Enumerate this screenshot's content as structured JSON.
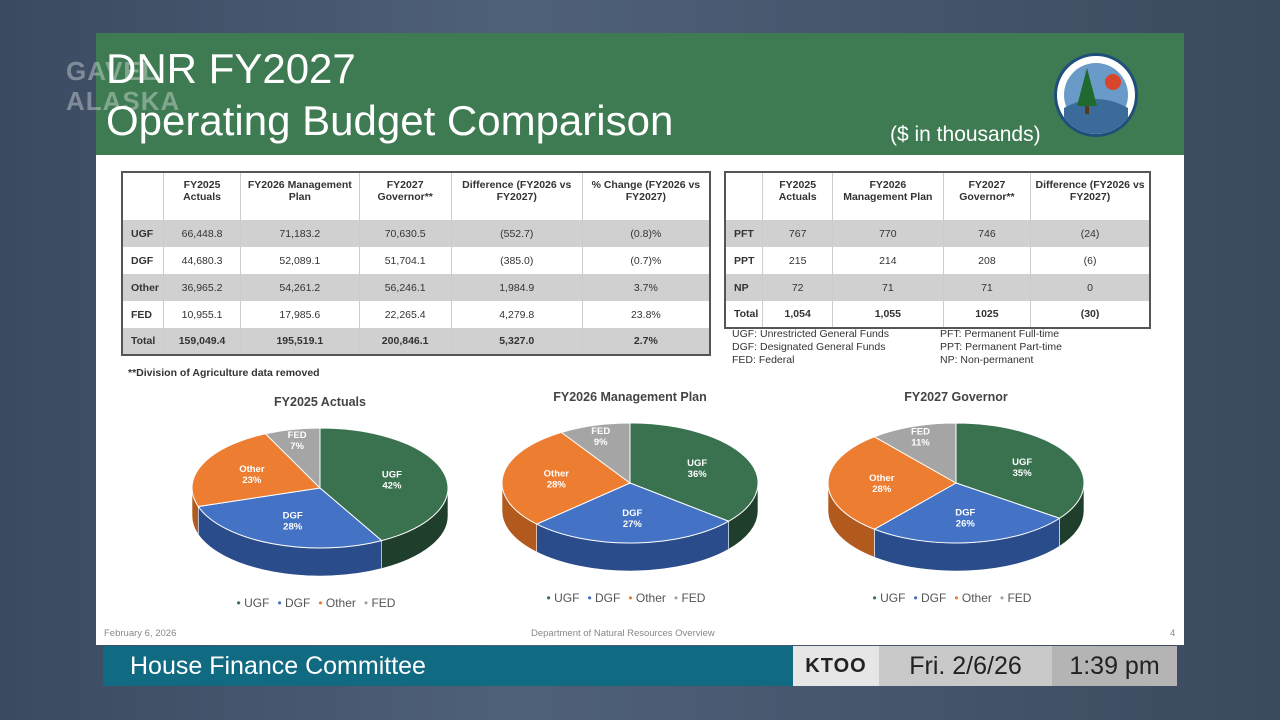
{
  "watermark": {
    "line1": "GAVEL",
    "line2": "ALASKA"
  },
  "slide": {
    "title_line1": "DNR FY2027",
    "title_line2": "Operating Budget Comparison",
    "units": "($ in thousands)",
    "logo_text": "Alaska Department of Natural Resources",
    "budget_table": {
      "headers": [
        "",
        "FY2025 Actuals",
        "FY2026 Management Plan",
        "FY2027 Governor**",
        "Difference (FY2026 vs FY2027)",
        "% Change (FY2026 vs FY2027)"
      ],
      "rows": [
        [
          "UGF",
          "66,448.8",
          "71,183.2",
          "70,630.5",
          "(552.7)",
          "(0.8)%"
        ],
        [
          "DGF",
          "44,680.3",
          "52,089.1",
          "51,704.1",
          "(385.0)",
          "(0.7)%"
        ],
        [
          "Other",
          "36,965.2",
          "54,261.2",
          "56,246.1",
          "1,984.9",
          "3.7%"
        ],
        [
          "FED",
          "10,955.1",
          "17,985.6",
          "22,265.4",
          "4,279.8",
          "23.8%"
        ],
        [
          "Total",
          "159,049.4",
          "195,519.1",
          "200,846.1",
          "5,327.0",
          "2.7%"
        ]
      ]
    },
    "position_table": {
      "headers": [
        "",
        "FY2025 Actuals",
        "FY2026 Management Plan",
        "FY2027 Governor**",
        "Difference (FY2026 vs FY2027)"
      ],
      "rows": [
        [
          "PFT",
          "767",
          "770",
          "746",
          "(24)"
        ],
        [
          "PPT",
          "215",
          "214",
          "208",
          "(6)"
        ],
        [
          "NP",
          "72",
          "71",
          "71",
          "0"
        ],
        [
          "Total",
          "1,054",
          "1,055",
          "1025",
          "(30)"
        ]
      ]
    },
    "abbrev_left": [
      "UGF: Unrestricted General Funds",
      "DGF: Designated General Funds",
      "FED: Federal"
    ],
    "abbrev_right": [
      "PFT: Permanent Full-time",
      "PPT: Permanent Part-time",
      "NP: Non-permanent"
    ],
    "note": "**Division of Agriculture data removed",
    "footer_date": "February 6, 2026",
    "footer_center": "Department of Natural Resources Overview",
    "page_number": "4"
  },
  "chart_data": [
    {
      "type": "pie",
      "title": "FY2025 Actuals",
      "labels": [
        "UGF",
        "DGF",
        "Other",
        "FED"
      ],
      "values": [
        42,
        28,
        23,
        7
      ],
      "legend": [
        "UGF",
        "DGF",
        "Other",
        "FED"
      ]
    },
    {
      "type": "pie",
      "title": "FY2026 Management Plan",
      "labels": [
        "UGF",
        "DGF",
        "Other",
        "FED"
      ],
      "values": [
        36,
        27,
        28,
        9
      ],
      "legend": [
        "UGF",
        "DGF",
        "Other",
        "FED"
      ]
    },
    {
      "type": "pie",
      "title": "FY2027 Governor",
      "labels": [
        "UGF",
        "DGF",
        "Other",
        "FED"
      ],
      "values": [
        35,
        26,
        28,
        11
      ],
      "legend": [
        "UGF",
        "DGF",
        "Other",
        "FED"
      ]
    }
  ],
  "colors": {
    "UGF": "#3a7250",
    "DGF": "#4472c4",
    "Other": "#ed7d31",
    "FED": "#a5a5a5"
  },
  "lower_third": {
    "program": "House Finance Committee",
    "station": "KTOO",
    "date": "Fri. 2/6/26",
    "time": "1:39 pm"
  }
}
